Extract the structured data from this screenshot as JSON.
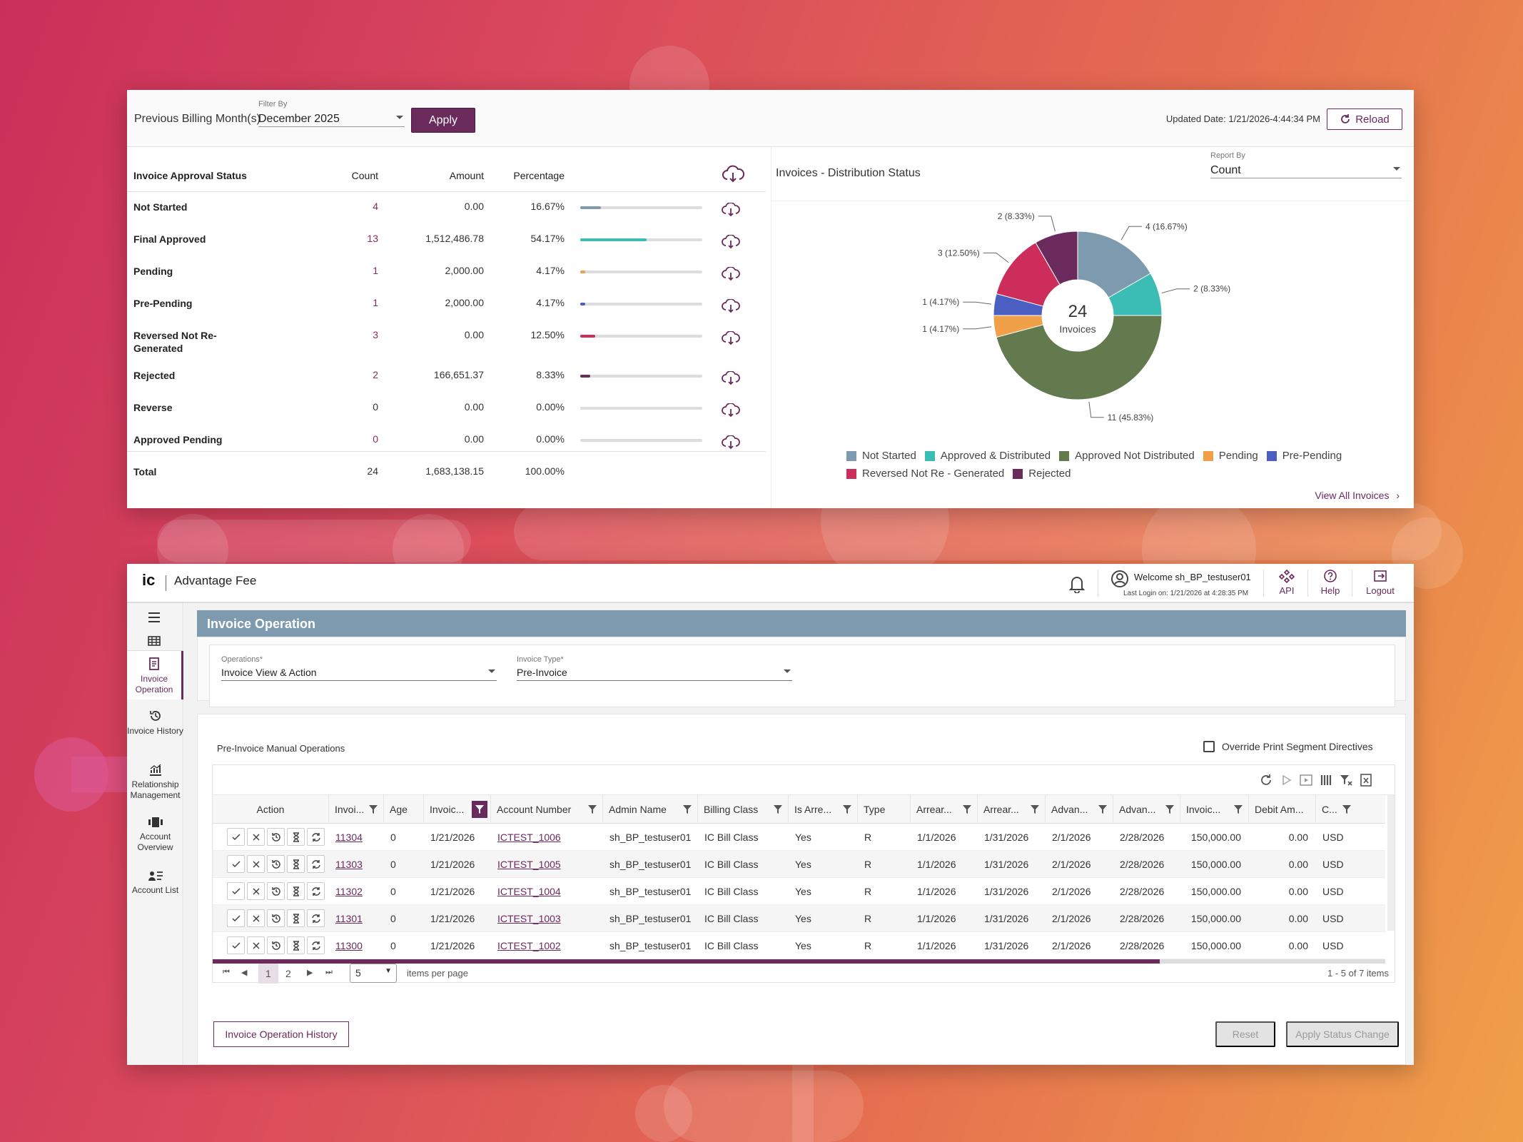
{
  "dashboard": {
    "billing_label": "Previous Billing Month(s)",
    "filter": {
      "label": "Filter By",
      "value": "December 2025"
    },
    "apply_label": "Apply",
    "updated_date": "Updated Date: 1/21/2026-4:44:34 PM",
    "reload_label": "Reload",
    "table": {
      "headers": [
        "Invoice Approval Status",
        "Count",
        "Amount",
        "Percentage"
      ],
      "rows": [
        {
          "name": "Not Started",
          "count": "4",
          "amount": "0.00",
          "percentage": "16.67%",
          "fraction": 0.1667,
          "color": "#7e9aae"
        },
        {
          "name": "Final Approved",
          "count": "13",
          "amount": "1,512,486.78",
          "percentage": "54.17%",
          "fraction": 0.5417,
          "color": "#3bbdb5"
        },
        {
          "name": "Pending",
          "count": "1",
          "amount": "2,000.00",
          "percentage": "4.17%",
          "fraction": 0.0417,
          "color": "#f0a048"
        },
        {
          "name": "Pre-Pending",
          "count": "1",
          "amount": "2,000.00",
          "percentage": "4.17%",
          "fraction": 0.0417,
          "color": "#4a5fc1"
        },
        {
          "name": "Reversed Not Re-Generated",
          "count": "3",
          "amount": "0.00",
          "percentage": "12.50%",
          "fraction": 0.125,
          "color": "#cc2d5a"
        },
        {
          "name": "Rejected",
          "count": "2",
          "amount": "166,651.37",
          "percentage": "8.33%",
          "fraction": 0.0833,
          "color": "#6b2a5c"
        },
        {
          "name": "Reverse",
          "count": "0",
          "amount": "0.00",
          "percentage": "0.00%",
          "fraction": 0,
          "color": "#999999"
        },
        {
          "name": "Approved Pending",
          "count": "0",
          "amount": "0.00",
          "percentage": "0.00%",
          "fraction": 0,
          "color": "#999999"
        }
      ],
      "total": {
        "name": "Total",
        "count": "24",
        "amount": "1,683,138.15",
        "percentage": "100.00%"
      }
    },
    "donut": {
      "title": "Invoices - Distribution Status",
      "report_by": {
        "label": "Report By",
        "value": "Count"
      },
      "center_value": "24",
      "center_label": "Invoices",
      "view_all": "View All Invoices"
    }
  },
  "chart_data": {
    "type": "pie",
    "title": "Invoices - Distribution Status",
    "slices": [
      {
        "name": "Not Started",
        "value": 4,
        "label": "4 (16.67%)",
        "color": "#7e9aae"
      },
      {
        "name": "Approved & Distributed",
        "value": 2,
        "label": "2 (8.33%)",
        "color": "#3bbdb5"
      },
      {
        "name": "Approved Not Distributed",
        "value": 11,
        "label": "11 (45.83%)",
        "color": "#637a4f"
      },
      {
        "name": "Pending",
        "value": 1,
        "label": "1 (4.17%)",
        "color": "#f0a048"
      },
      {
        "name": "Pre-Pending",
        "value": 1,
        "label": "1 (4.17%)",
        "color": "#4a5fc1"
      },
      {
        "name": "Reversed Not Re - Generated",
        "value": 3,
        "label": "3 (12.50%)",
        "color": "#cc2d5a"
      },
      {
        "name": "Rejected",
        "value": 2,
        "label": "2 (8.33%)",
        "color": "#6b2a5c"
      }
    ],
    "legend_position": "bottom"
  },
  "app": {
    "logo": "ic",
    "name": "Advantage Fee",
    "welcome": "Welcome sh_BP_testuser01",
    "last_login": "Last Login on: 1/21/2026 at 4:28:35 PM",
    "header_buttons": {
      "api": "API",
      "help": "Help",
      "logout": "Logout"
    },
    "sidebar": [
      {
        "label": "Invoice Operation",
        "icon": "invoice-icon"
      },
      {
        "label": "Invoice History",
        "icon": "history-icon"
      },
      {
        "label": "Relationship Management",
        "icon": "chart-icon"
      },
      {
        "label": "Account Overview",
        "icon": "account-overview-icon"
      },
      {
        "label": "Account List",
        "icon": "account-list-icon"
      }
    ],
    "page_title": "Invoice Operation",
    "operations": {
      "label": "Operations*",
      "value": "Invoice View & Action"
    },
    "invoice_type": {
      "label": "Invoice Type*",
      "value": "Pre-Invoice"
    },
    "grid_title": "Pre-Invoice Manual Operations",
    "override_label": "Override Print Segment Directives",
    "columns": [
      "Action",
      "Invoi...",
      "Age",
      "Invoic...",
      "Account Number",
      "Admin Name",
      "Billing Class",
      "Is Arre...",
      "Type",
      "Arrear...",
      "Arrear...",
      "Advan...",
      "Advan...",
      "Invoic...",
      "Debit Am...",
      "C..."
    ],
    "rows": [
      [
        "11304",
        "0",
        "1/21/2026",
        "ICTEST_1006",
        "sh_BP_testuser01",
        "IC Bill Class",
        "Yes",
        "R",
        "1/1/2026",
        "1/31/2026",
        "2/1/2026",
        "2/28/2026",
        "150,000.00",
        "0.00",
        "USD"
      ],
      [
        "11303",
        "0",
        "1/21/2026",
        "ICTEST_1005",
        "sh_BP_testuser01",
        "IC Bill Class",
        "Yes",
        "R",
        "1/1/2026",
        "1/31/2026",
        "2/1/2026",
        "2/28/2026",
        "150,000.00",
        "0.00",
        "USD"
      ],
      [
        "11302",
        "0",
        "1/21/2026",
        "ICTEST_1004",
        "sh_BP_testuser01",
        "IC Bill Class",
        "Yes",
        "R",
        "1/1/2026",
        "1/31/2026",
        "2/1/2026",
        "2/28/2026",
        "150,000.00",
        "0.00",
        "USD"
      ],
      [
        "11301",
        "0",
        "1/21/2026",
        "ICTEST_1003",
        "sh_BP_testuser01",
        "IC Bill Class",
        "Yes",
        "R",
        "1/1/2026",
        "1/31/2026",
        "2/1/2026",
        "2/28/2026",
        "150,000.00",
        "0.00",
        "USD"
      ],
      [
        "11300",
        "0",
        "1/21/2026",
        "ICTEST_1002",
        "sh_BP_testuser01",
        "IC Bill Class",
        "Yes",
        "R",
        "1/1/2026",
        "1/31/2026",
        "2/1/2026",
        "2/28/2026",
        "150,000.00",
        "0.00",
        "USD"
      ]
    ],
    "pager": {
      "pages": [
        "1",
        "2"
      ],
      "page_size": "5",
      "items_per_page": "items per page",
      "summary": "1 - 5 of 7 items"
    },
    "buttons": {
      "history": "Invoice Operation History",
      "reset": "Reset",
      "apply_status": "Apply Status Change"
    },
    "accent_color": "#6b2a5c"
  }
}
